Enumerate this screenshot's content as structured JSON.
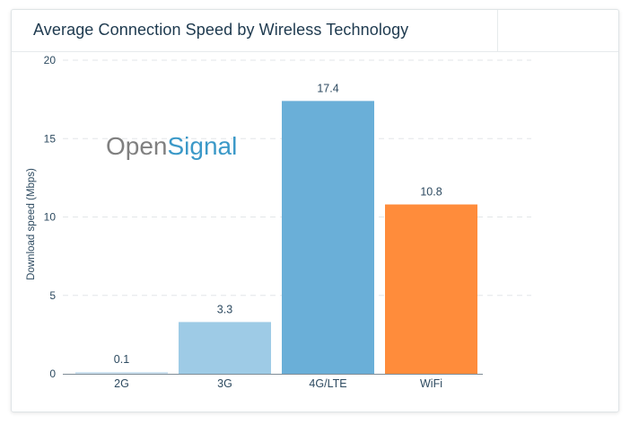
{
  "chart_data": {
    "type": "bar",
    "title": "Average Connection Speed by Wireless Technology",
    "ylabel": "Download speed (Mbps)",
    "xlabel": "",
    "categories": [
      "2G",
      "3G",
      "4G/LTE",
      "WiFi"
    ],
    "values": [
      0.1,
      3.3,
      17.4,
      10.8
    ],
    "value_labels": [
      "0.1",
      "3.3",
      "17.4",
      "10.8"
    ],
    "bar_colors": [
      "#cfe3f1",
      "#9ecbe6",
      "#6aafd8",
      "#ff8c3b"
    ],
    "ylim": [
      0,
      20
    ],
    "yticks": [
      0,
      5,
      10,
      15,
      20
    ],
    "grid": true,
    "legend": "none"
  },
  "watermark": {
    "part1": "Open",
    "part2": "Signal",
    "color1": "#808080",
    "color2": "#3b99c8"
  },
  "colors": {
    "title": "#1e3a4f",
    "axis_text": "#2d4a60",
    "grid": "#e3e6e8"
  }
}
